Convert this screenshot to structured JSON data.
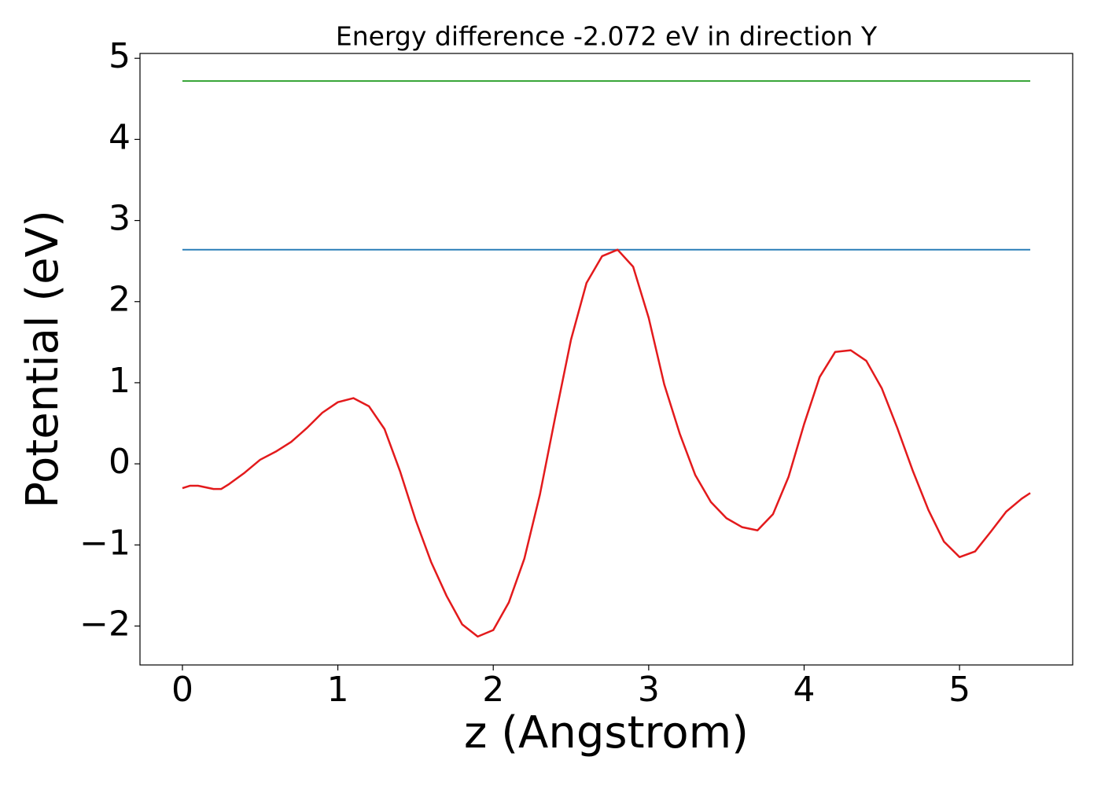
{
  "chart_data": {
    "type": "line",
    "title": "Energy difference -2.072 eV in direction Y",
    "x_label": "z (Angstrom)",
    "y_label": "Potential (eV)",
    "xlim": [
      -0.273,
      5.728
    ],
    "ylim": [
      -2.48,
      5.06
    ],
    "xticks": [
      0,
      1,
      2,
      3,
      4,
      5
    ],
    "yticks": [
      {
        "value": -2,
        "label": "−2"
      },
      {
        "value": -1,
        "label": "−1"
      },
      0,
      1,
      2,
      3,
      4,
      5
    ],
    "grid": false,
    "series": [
      {
        "color": "#2ca02c",
        "x": [
          0,
          5.455
        ],
        "values": [
          4.72,
          4.72
        ]
      },
      {
        "color": "#1f77b4",
        "x": [
          0,
          5.455
        ],
        "values": [
          2.64,
          2.64
        ]
      },
      {
        "color": "#e31a1c",
        "x": [
          0,
          0.05,
          0.1,
          0.2,
          0.25,
          0.3,
          0.4,
          0.5,
          0.6,
          0.7,
          0.8,
          0.9,
          1.0,
          1.1,
          1.2,
          1.3,
          1.4,
          1.5,
          1.6,
          1.7,
          1.8,
          1.9,
          2.0,
          2.1,
          2.2,
          2.3,
          2.4,
          2.5,
          2.6,
          2.7,
          2.8,
          2.9,
          3.0,
          3.1,
          3.2,
          3.3,
          3.4,
          3.5,
          3.6,
          3.7,
          3.8,
          3.9,
          4.0,
          4.1,
          4.2,
          4.3,
          4.4,
          4.5,
          4.6,
          4.7,
          4.8,
          4.9,
          5.0,
          5.1,
          5.2,
          5.3,
          5.4,
          5.455
        ],
        "values": [
          -0.3,
          -0.27,
          -0.27,
          -0.31,
          -0.31,
          -0.25,
          -0.11,
          0.05,
          0.15,
          0.27,
          0.44,
          0.63,
          0.76,
          0.81,
          0.71,
          0.43,
          -0.09,
          -0.69,
          -1.21,
          -1.63,
          -1.98,
          -2.13,
          -2.05,
          -1.71,
          -1.17,
          -0.38,
          0.59,
          1.53,
          2.23,
          2.56,
          2.64,
          2.43,
          1.8,
          0.98,
          0.37,
          -0.14,
          -0.47,
          -0.67,
          -0.78,
          -0.82,
          -0.62,
          -0.16,
          0.49,
          1.07,
          1.38,
          1.4,
          1.27,
          0.93,
          0.44,
          -0.09,
          -0.57,
          -0.96,
          -1.15,
          -1.08,
          -0.84,
          -0.59,
          -0.43,
          -0.36
        ]
      }
    ]
  }
}
